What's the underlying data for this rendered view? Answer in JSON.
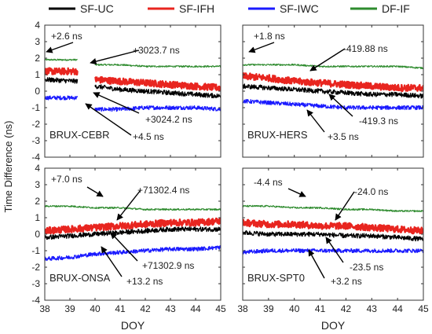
{
  "figure": {
    "ylabel": "Time Difference (ns)",
    "xlabel": "DOY"
  },
  "legend": [
    {
      "label": "SF-UC",
      "color": "#000000"
    },
    {
      "label": "SF-IFH",
      "color": "#e8251f"
    },
    {
      "label": "SF-IWC",
      "color": "#1a1aff"
    },
    {
      "label": "DF-IF",
      "color": "#2e8b2e"
    }
  ],
  "chart_data": [
    {
      "type": "line",
      "title": "BRUX-CEBR",
      "xlim": [
        38,
        45
      ],
      "ylim": [
        -4,
        4
      ],
      "xticks": [
        38,
        39,
        40,
        41,
        42,
        43,
        44,
        45
      ],
      "yticks": [
        -4,
        -3,
        -2,
        -1,
        0,
        1,
        2,
        3,
        4
      ],
      "gap": [
        39.3,
        40.0
      ],
      "series": [
        {
          "name": "SF-UC",
          "x": [
            38,
            39.3,
            40.0,
            41,
            42,
            43,
            44,
            45
          ],
          "values": [
            0.7,
            0.6,
            0.3,
            0.1,
            0.0,
            -0.1,
            -0.2,
            -0.3
          ]
        },
        {
          "name": "SF-IFH",
          "x": [
            38,
            39.3,
            40.0,
            41,
            42,
            43,
            44,
            45
          ],
          "values": [
            1.2,
            1.2,
            0.7,
            0.6,
            0.5,
            0.4,
            0.3,
            0.2
          ]
        },
        {
          "name": "SF-IWC",
          "x": [
            38,
            39.3,
            40.0,
            41,
            42,
            43,
            44,
            45
          ],
          "values": [
            -0.4,
            -0.4,
            -1.1,
            -1.1,
            -1.0,
            -1.0,
            -1.0,
            -1.1
          ]
        },
        {
          "name": "DF-IF",
          "x": [
            38,
            39.3,
            40.0,
            41,
            42,
            43,
            44,
            45
          ],
          "values": [
            1.9,
            1.9,
            1.6,
            1.6,
            1.5,
            1.5,
            1.5,
            1.5
          ]
        }
      ],
      "annotations": [
        "+2.6 ns",
        "+3023.7 ns",
        "+3024.2 ns",
        "+4.5 ns"
      ]
    },
    {
      "type": "line",
      "title": "BRUX-HERS",
      "xlim": [
        38,
        45
      ],
      "ylim": [
        -4,
        4
      ],
      "xticks": [
        38,
        39,
        40,
        41,
        42,
        43,
        44,
        45
      ],
      "yticks": [
        -4,
        -3,
        -2,
        -1,
        0,
        1,
        2,
        3,
        4
      ],
      "series": [
        {
          "name": "SF-UC",
          "x": [
            38,
            39,
            40,
            41,
            42,
            43,
            44,
            45
          ],
          "values": [
            0.3,
            0.2,
            0.1,
            0.0,
            -0.1,
            -0.2,
            -0.2,
            -0.3
          ]
        },
        {
          "name": "SF-IFH",
          "x": [
            38,
            39,
            40,
            41,
            42,
            43,
            44,
            45
          ],
          "values": [
            0.9,
            0.8,
            0.6,
            0.5,
            0.4,
            0.3,
            0.2,
            0.2
          ]
        },
        {
          "name": "SF-IWC",
          "x": [
            38,
            39,
            40,
            41,
            42,
            43,
            44,
            45
          ],
          "values": [
            -0.6,
            -0.7,
            -0.8,
            -0.9,
            -1.0,
            -1.0,
            -1.0,
            -1.0
          ]
        },
        {
          "name": "DF-IF",
          "x": [
            38,
            39,
            40,
            41,
            42,
            43,
            44,
            45
          ],
          "values": [
            1.6,
            1.6,
            1.6,
            1.5,
            1.5,
            1.5,
            1.5,
            1.4
          ]
        }
      ],
      "annotations": [
        "+1.8 ns",
        "-419.88 ns",
        "-419.3 ns",
        "+3.5 ns"
      ]
    },
    {
      "type": "line",
      "title": "BRUX-ONSA",
      "xlim": [
        38,
        45
      ],
      "ylim": [
        -4,
        4
      ],
      "xticks": [
        38,
        39,
        40,
        41,
        42,
        43,
        44,
        45
      ],
      "yticks": [
        -4,
        -3,
        -2,
        -1,
        0,
        1,
        2,
        3,
        4
      ],
      "series": [
        {
          "name": "SF-UC",
          "x": [
            38,
            39,
            40,
            41,
            42,
            43,
            44,
            45
          ],
          "values": [
            -0.2,
            -0.1,
            0.0,
            0.1,
            0.2,
            0.3,
            0.3,
            0.3
          ]
        },
        {
          "name": "SF-IFH",
          "x": [
            38,
            39,
            40,
            41,
            42,
            43,
            44,
            45
          ],
          "values": [
            0.2,
            0.3,
            0.4,
            0.5,
            0.6,
            0.7,
            0.7,
            0.8
          ]
        },
        {
          "name": "SF-IWC",
          "x": [
            38,
            39,
            40,
            41,
            42,
            43,
            44,
            45
          ],
          "values": [
            -1.5,
            -1.4,
            -1.2,
            -1.1,
            -1.0,
            -0.9,
            -0.9,
            -0.8
          ]
        },
        {
          "name": "DF-IF",
          "x": [
            38,
            39,
            40,
            41,
            42,
            43,
            44,
            45
          ],
          "values": [
            1.7,
            1.7,
            1.6,
            1.6,
            1.5,
            1.5,
            1.5,
            1.5
          ]
        }
      ],
      "annotations": [
        "+7.0 ns",
        "+71302.4 ns",
        "+71302.9 ns",
        "+13.2 ns"
      ]
    },
    {
      "type": "line",
      "title": "BRUX-SPT0",
      "xlim": [
        38,
        45
      ],
      "ylim": [
        -4,
        4
      ],
      "xticks": [
        38,
        39,
        40,
        41,
        42,
        43,
        44,
        45
      ],
      "yticks": [
        -4,
        -3,
        -2,
        -1,
        0,
        1,
        2,
        3,
        4
      ],
      "series": [
        {
          "name": "SF-UC",
          "x": [
            38,
            39,
            40,
            41,
            42,
            43,
            44,
            45
          ],
          "values": [
            0.1,
            0.0,
            0.0,
            0.0,
            -0.1,
            -0.1,
            -0.2,
            -0.3
          ]
        },
        {
          "name": "SF-IFH",
          "x": [
            38,
            39,
            40,
            41,
            42,
            43,
            44,
            45
          ],
          "values": [
            0.7,
            0.6,
            0.6,
            0.5,
            0.5,
            0.4,
            0.3,
            0.2
          ]
        },
        {
          "name": "SF-IWC",
          "x": [
            38,
            39,
            40,
            41,
            42,
            43,
            44,
            45
          ],
          "values": [
            -1.1,
            -1.0,
            -1.0,
            -1.0,
            -1.0,
            -1.0,
            -1.0,
            -1.0
          ]
        },
        {
          "name": "DF-IF",
          "x": [
            38,
            39,
            40,
            41,
            42,
            43,
            44,
            45
          ],
          "values": [
            1.7,
            1.7,
            1.6,
            1.6,
            1.5,
            1.5,
            1.4,
            1.4
          ]
        }
      ],
      "annotations": [
        "-4.4 ns",
        "-24.0 ns",
        "-23.5 ns",
        "+3.2 ns"
      ]
    }
  ]
}
